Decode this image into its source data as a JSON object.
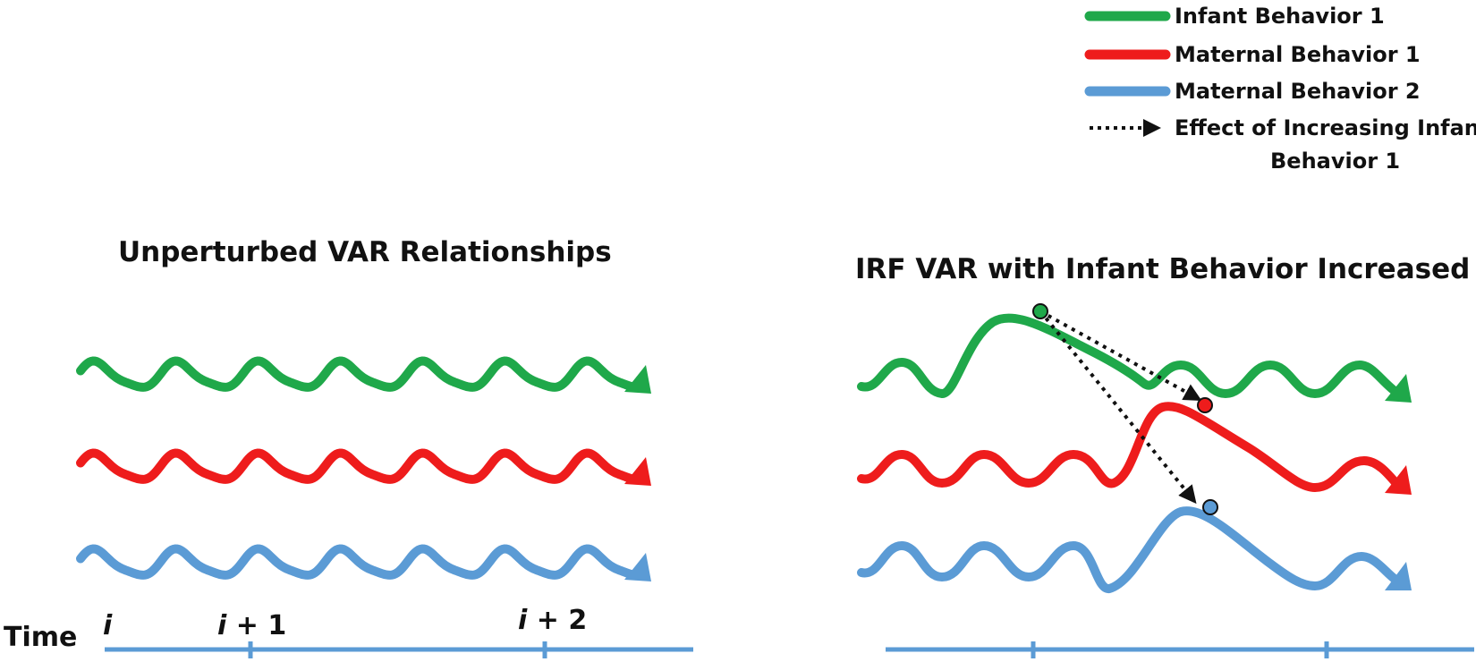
{
  "colors": {
    "infant1": "#1fa84a",
    "maternal1": "#ee1c1c",
    "maternal2": "#5b9bd5",
    "effect_arrow": "#111111",
    "axis": "#5b9bd5"
  },
  "legend": {
    "items": [
      {
        "label": "Infant Behavior 1",
        "color_key": "infant1",
        "style": "solid"
      },
      {
        "label": "Maternal Behavior 1",
        "color_key": "maternal1",
        "style": "solid"
      },
      {
        "label": "Maternal Behavior 2",
        "color_key": "maternal2",
        "style": "solid"
      },
      {
        "label": "Effect of Increasing Infant",
        "label_line2": "Behavior 1",
        "color_key": "effect_arrow",
        "style": "dotted-arrow"
      }
    ]
  },
  "panels": {
    "left": {
      "title": "Unperturbed VAR Relationships"
    },
    "right": {
      "title": "IRF VAR with Infant Behavior Increased"
    }
  },
  "time_axis": {
    "label": "Time",
    "ticks": [
      {
        "var": "i",
        "suffix": ""
      },
      {
        "var": "i",
        "suffix": " + 1"
      },
      {
        "var": "i",
        "suffix": " + 2"
      }
    ]
  }
}
